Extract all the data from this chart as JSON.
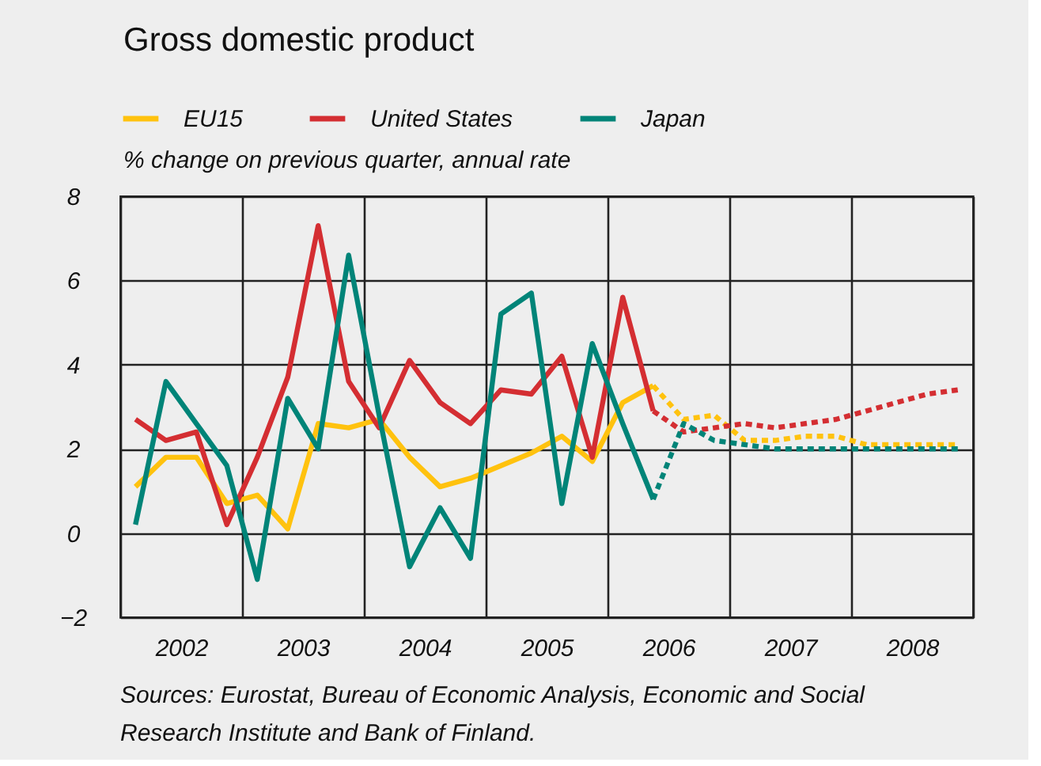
{
  "chart_data": {
    "type": "line",
    "title": "Gross domestic product",
    "subtitle": "% change on previous quarter, annual rate",
    "annotations": [
      "Sources: Eurostat, Bureau of Economic Analysis, Economic and Social Research Institute and Bank of Finland."
    ],
    "x": [
      2002.125,
      2002.375,
      2002.625,
      2002.875,
      2003.125,
      2003.375,
      2003.625,
      2003.875,
      2004.125,
      2004.375,
      2004.625,
      2004.875,
      2005.125,
      2005.375,
      2005.625,
      2005.875,
      2006.125,
      2006.375,
      2006.625,
      2006.875,
      2007.125,
      2007.375,
      2007.625,
      2007.875,
      2008.125,
      2008.375,
      2008.625,
      2008.875
    ],
    "series": [
      {
        "name": "EU15",
        "color": "#ffc20e",
        "values": [
          1.1,
          1.8,
          1.8,
          0.7,
          0.9,
          0.1,
          2.6,
          2.5,
          2.7,
          1.8,
          1.1,
          1.3,
          1.6,
          1.9,
          2.3,
          1.7,
          3.1,
          3.5,
          null,
          null,
          null,
          null,
          null,
          null,
          null,
          null,
          null,
          null
        ]
      },
      {
        "name": "United States",
        "color": "#d42e32",
        "values": [
          2.7,
          2.2,
          2.4,
          0.2,
          1.8,
          3.7,
          7.3,
          3.6,
          2.5,
          4.1,
          3.1,
          2.6,
          3.4,
          3.3,
          4.2,
          1.8,
          5.6,
          2.9,
          null,
          null,
          null,
          null,
          null,
          null,
          null,
          null,
          null,
          null
        ]
      },
      {
        "name": "Japan",
        "color": "#008478",
        "values": [
          0.2,
          3.6,
          2.6,
          1.6,
          -1.1,
          3.2,
          2.0,
          6.6,
          2.8,
          -0.8,
          0.6,
          -0.6,
          5.2,
          5.7,
          0.7,
          4.5,
          2.6,
          0.8,
          null,
          null,
          null,
          null,
          null,
          null,
          null,
          null,
          null,
          null
        ]
      },
      {
        "color": "#ffc20e",
        "line_style": "dashed",
        "values": [
          null,
          null,
          null,
          null,
          null,
          null,
          null,
          null,
          null,
          null,
          null,
          null,
          null,
          null,
          null,
          null,
          null,
          3.5,
          2.7,
          2.8,
          2.2,
          2.2,
          2.3,
          2.3,
          2.1,
          2.1,
          2.1,
          2.1
        ]
      },
      {
        "color": "#d42e32",
        "line_style": "dashed",
        "values": [
          null,
          null,
          null,
          null,
          null,
          null,
          null,
          null,
          null,
          null,
          null,
          null,
          null,
          null,
          null,
          null,
          null,
          2.9,
          2.4,
          2.5,
          2.6,
          2.5,
          2.6,
          2.7,
          2.9,
          3.1,
          3.3,
          3.4
        ]
      },
      {
        "color": "#008478",
        "line_style": "dashed",
        "values": [
          null,
          null,
          null,
          null,
          null,
          null,
          null,
          null,
          null,
          null,
          null,
          null,
          null,
          null,
          null,
          null,
          null,
          0.8,
          2.6,
          2.2,
          2.1,
          2.0,
          2.0,
          2.0,
          2.0,
          2.0,
          2.0,
          2.0
        ]
      }
    ],
    "xlim": [
      2002,
      2009
    ],
    "xticks": [
      {
        "value": 2002,
        "label": null
      },
      {
        "value": 2002.5,
        "label": "2002"
      },
      {
        "value": 2003,
        "label": null
      },
      {
        "value": 2003.5,
        "label": "2003"
      },
      {
        "value": 2004,
        "label": null
      },
      {
        "value": 2004.5,
        "label": "2004"
      },
      {
        "value": 2005,
        "label": null
      },
      {
        "value": 2005.5,
        "label": "2005"
      },
      {
        "value": 2006,
        "label": null
      },
      {
        "value": 2006.5,
        "label": "2006"
      },
      {
        "value": 2007,
        "label": null
      },
      {
        "value": 2007.5,
        "label": "2007"
      },
      {
        "value": 2008,
        "label": null
      },
      {
        "value": 2008.5,
        "label": "2008"
      },
      {
        "value": 2009,
        "label": null
      }
    ],
    "ylim": [
      -2,
      8
    ],
    "yticks": [
      -2,
      0,
      2,
      4,
      6,
      8
    ],
    "grid": true,
    "legend": "top left",
    "line_style": "solid",
    "marker": "none"
  }
}
